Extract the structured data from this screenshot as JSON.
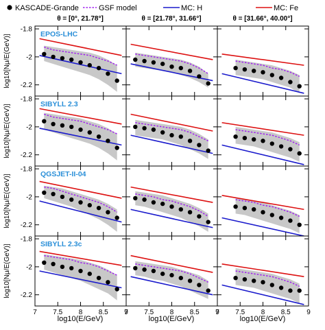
{
  "legend": {
    "data_label": "KASCADE-Grande",
    "gsf_label": "GSF model",
    "h_label": "MC: H",
    "fe_label": "MC: Fe"
  },
  "colors": {
    "data": "#000000",
    "band": "#c8c8c8",
    "gsf": "#a020f0",
    "proton": "#1a1acc",
    "iron": "#dd1111",
    "frame": "#000000"
  },
  "zenith_bins": [
    "θ = [0°, 21.78°]",
    "θ = [21.78°, 31.66°]",
    "θ = [31.66°, 40.00°]"
  ],
  "models": [
    "EPOS-LHC",
    "SIBYLL 2.3",
    "QGSJET-II-04",
    "SIBYLL 2.3c"
  ],
  "x_axis_label": "log10(E/GeV)",
  "y_axis_label": "log10[Nμ/E(GeV)]",
  "chart_data": {
    "type": "scatter",
    "xlim": [
      7,
      9
    ],
    "ylim": [
      -2.28,
      -1.78
    ],
    "x_ticks": [
      7,
      7.5,
      8,
      8.5,
      9
    ],
    "x_tick_labels": [
      "7",
      "7.5",
      "8",
      "8.5",
      "9"
    ],
    "y_ticks": [
      -1.8,
      -2.0,
      -2.2
    ],
    "y_tick_labels": [
      "-1.8",
      "-2",
      "-2.2"
    ],
    "panels": [
      {
        "model": "EPOS-LHC",
        "zenith": 0,
        "data_x": [
          7.2,
          7.4,
          7.6,
          7.8,
          8.0,
          8.2,
          8.4,
          8.6,
          8.8
        ],
        "data_y": [
          -1.98,
          -2.0,
          -2.01,
          -2.02,
          -2.04,
          -2.06,
          -2.08,
          -2.12,
          -2.17
        ],
        "band_upper": [
          -1.92,
          -1.93,
          -1.94,
          -1.95,
          -1.96,
          -1.97,
          -1.99,
          -2.02,
          -2.06
        ],
        "band_lower": [
          -2.03,
          -2.05,
          -2.07,
          -2.09,
          -2.11,
          -2.13,
          -2.16,
          -2.2,
          -2.25
        ],
        "gsf_y": [
          -1.93,
          -1.95,
          -1.96,
          -1.97,
          -1.98,
          -1.99,
          -2.01,
          -2.03,
          -2.06
        ],
        "mc_h_y": [
          -1.99,
          -2.12
        ],
        "mc_fe_y": [
          -1.87,
          -1.99
        ]
      },
      {
        "model": "EPOS-LHC",
        "zenith": 1,
        "data_x": [
          7.2,
          7.4,
          7.6,
          7.8,
          8.0,
          8.2,
          8.4,
          8.6,
          8.8
        ],
        "data_y": [
          -2.02,
          -2.03,
          -2.04,
          -2.05,
          -2.07,
          -2.08,
          -2.1,
          -2.14,
          -2.19
        ],
        "band_upper": [
          -1.97,
          -1.98,
          -1.99,
          -2.0,
          -2.01,
          -2.02,
          -2.04,
          -2.07,
          -2.12
        ],
        "band_lower": [
          -2.07,
          -2.08,
          -2.09,
          -2.1,
          -2.11,
          -2.13,
          -2.15,
          -2.18,
          -2.22
        ],
        "gsf_y": [
          -1.98,
          -1.99,
          -2.0,
          -2.01,
          -2.02,
          -2.03,
          -2.05,
          -2.08,
          -2.12
        ],
        "mc_h_y": [
          -2.05,
          -2.17
        ],
        "mc_fe_y": [
          -1.91,
          -2.02
        ]
      },
      {
        "model": "EPOS-LHC",
        "zenith": 2,
        "data_x": [
          7.4,
          7.6,
          7.8,
          8.0,
          8.2,
          8.4,
          8.6,
          8.8
        ],
        "data_y": [
          -2.08,
          -2.09,
          -2.1,
          -2.11,
          -2.13,
          -2.15,
          -2.18,
          -2.21
        ],
        "band_upper": [
          -2.02,
          -2.03,
          -2.04,
          -2.05,
          -2.06,
          -2.08,
          -2.1,
          -2.13
        ],
        "band_lower": [
          -2.13,
          -2.14,
          -2.15,
          -2.16,
          -2.18,
          -2.2,
          -2.22,
          -2.26
        ],
        "gsf_y": [
          -2.03,
          -2.04,
          -2.05,
          -2.06,
          -2.08,
          -2.09,
          -2.11,
          -2.14
        ],
        "mc_h_y": [
          -2.12,
          -2.26
        ],
        "mc_fe_y": [
          -1.98,
          -2.06
        ]
      },
      {
        "model": "SIBYLL 2.3",
        "zenith": 0,
        "data_x": [
          7.2,
          7.4,
          7.6,
          7.8,
          8.0,
          8.2,
          8.4,
          8.6,
          8.8
        ],
        "data_y": [
          -1.96,
          -1.98,
          -1.99,
          -2.0,
          -2.02,
          -2.04,
          -2.07,
          -2.1,
          -2.15
        ],
        "band_upper": [
          -1.9,
          -1.91,
          -1.92,
          -1.93,
          -1.94,
          -1.96,
          -1.98,
          -2.01,
          -2.05
        ],
        "band_lower": [
          -2.02,
          -2.04,
          -2.06,
          -2.08,
          -2.1,
          -2.12,
          -2.15,
          -2.19,
          -2.24
        ],
        "gsf_y": [
          -1.91,
          -1.93,
          -1.94,
          -1.95,
          -1.96,
          -1.98,
          -2.0,
          -2.02,
          -2.05
        ],
        "mc_h_y": [
          -2.01,
          -2.13
        ],
        "mc_fe_y": [
          -1.87,
          -1.98
        ]
      },
      {
        "model": "SIBYLL 2.3",
        "zenith": 1,
        "data_x": [
          7.2,
          7.4,
          7.6,
          7.8,
          8.0,
          8.2,
          8.4,
          8.6,
          8.8
        ],
        "data_y": [
          -2.0,
          -2.01,
          -2.02,
          -2.04,
          -2.06,
          -2.07,
          -2.1,
          -2.13,
          -2.17
        ],
        "band_upper": [
          -1.95,
          -1.96,
          -1.97,
          -1.98,
          -1.99,
          -2.0,
          -2.02,
          -2.05,
          -2.09
        ],
        "band_lower": [
          -2.06,
          -2.07,
          -2.08,
          -2.09,
          -2.11,
          -2.13,
          -2.16,
          -2.19,
          -2.23
        ],
        "gsf_y": [
          -1.97,
          -1.98,
          -1.99,
          -2.0,
          -2.01,
          -2.02,
          -2.04,
          -2.07,
          -2.1
        ],
        "mc_h_y": [
          -2.06,
          -2.19
        ],
        "mc_fe_y": [
          -1.91,
          -2.03
        ]
      },
      {
        "model": "SIBYLL 2.3",
        "zenith": 2,
        "data_x": [
          7.4,
          7.6,
          7.8,
          8.0,
          8.2,
          8.4,
          8.6,
          8.8
        ],
        "data_y": [
          -2.07,
          -2.08,
          -2.09,
          -2.1,
          -2.12,
          -2.14,
          -2.16,
          -2.19
        ],
        "band_upper": [
          -2.0,
          -2.01,
          -2.02,
          -2.03,
          -2.04,
          -2.06,
          -2.08,
          -2.11
        ],
        "band_lower": [
          -2.12,
          -2.13,
          -2.14,
          -2.16,
          -2.18,
          -2.2,
          -2.22,
          -2.25
        ],
        "gsf_y": [
          -2.02,
          -2.03,
          -2.04,
          -2.05,
          -2.06,
          -2.08,
          -2.1,
          -2.13
        ],
        "mc_h_y": [
          -2.13,
          -2.27
        ],
        "mc_fe_y": [
          -1.97,
          -2.06
        ]
      },
      {
        "model": "QGSJET-II-04",
        "zenith": 0,
        "data_x": [
          7.2,
          7.4,
          7.6,
          7.8,
          8.0,
          8.2,
          8.4,
          8.6,
          8.8
        ],
        "data_y": [
          -1.97,
          -1.98,
          -2.0,
          -2.02,
          -2.04,
          -2.06,
          -2.08,
          -2.11,
          -2.15
        ],
        "band_upper": [
          -1.92,
          -1.93,
          -1.94,
          -1.96,
          -1.98,
          -2.0,
          -2.02,
          -2.05,
          -2.09
        ],
        "band_lower": [
          -2.01,
          -2.03,
          -2.05,
          -2.07,
          -2.1,
          -2.13,
          -2.16,
          -2.2,
          -2.25
        ],
        "gsf_y": [
          -1.93,
          -1.94,
          -1.96,
          -1.98,
          -2.0,
          -2.02,
          -2.04,
          -2.07,
          -2.11
        ],
        "mc_h_y": [
          -2.03,
          -2.18
        ],
        "mc_fe_y": [
          -1.89,
          -2.01
        ]
      },
      {
        "model": "QGSJET-II-04",
        "zenith": 1,
        "data_x": [
          7.2,
          7.4,
          7.6,
          7.8,
          8.0,
          8.2,
          8.4,
          8.6,
          8.8
        ],
        "data_y": [
          -2.01,
          -2.02,
          -2.04,
          -2.05,
          -2.07,
          -2.09,
          -2.11,
          -2.14,
          -2.18
        ],
        "band_upper": [
          -1.96,
          -1.97,
          -1.98,
          -1.99,
          -2.01,
          -2.03,
          -2.05,
          -2.08,
          -2.12
        ],
        "band_lower": [
          -2.06,
          -2.07,
          -2.09,
          -2.11,
          -2.13,
          -2.15,
          -2.18,
          -2.21,
          -2.25
        ],
        "gsf_y": [
          -1.98,
          -1.99,
          -2.0,
          -2.02,
          -2.03,
          -2.05,
          -2.07,
          -2.1,
          -2.14
        ],
        "mc_h_y": [
          -2.09,
          -2.22
        ],
        "mc_fe_y": [
          -1.93,
          -2.04
        ]
      },
      {
        "model": "QGSJET-II-04",
        "zenith": 2,
        "data_x": [
          7.4,
          7.6,
          7.8,
          8.0,
          8.2,
          8.4,
          8.6,
          8.8
        ],
        "data_y": [
          -2.07,
          -2.08,
          -2.09,
          -2.11,
          -2.13,
          -2.15,
          -2.17,
          -2.2
        ],
        "band_upper": [
          -2.01,
          -2.02,
          -2.03,
          -2.04,
          -2.06,
          -2.08,
          -2.1,
          -2.13
        ],
        "band_lower": [
          -2.12,
          -2.13,
          -2.15,
          -2.17,
          -2.19,
          -2.21,
          -2.23,
          -2.26
        ],
        "gsf_y": [
          -2.02,
          -2.03,
          -2.04,
          -2.06,
          -2.07,
          -2.09,
          -2.11,
          -2.14
        ],
        "mc_h_y": [
          -2.15,
          -2.28
        ],
        "mc_fe_y": [
          -1.99,
          -2.09
        ]
      },
      {
        "model": "SIBYLL 2.3c",
        "zenith": 0,
        "data_x": [
          7.2,
          7.4,
          7.6,
          7.8,
          8.0,
          8.2,
          8.4,
          8.6,
          8.8
        ],
        "data_y": [
          -1.97,
          -1.98,
          -2.0,
          -2.01,
          -2.03,
          -2.05,
          -2.08,
          -2.11,
          -2.16
        ],
        "band_upper": [
          -1.91,
          -1.92,
          -1.93,
          -1.94,
          -1.95,
          -1.97,
          -1.99,
          -2.02,
          -2.06
        ],
        "band_lower": [
          -2.02,
          -2.04,
          -2.06,
          -2.08,
          -2.1,
          -2.13,
          -2.16,
          -2.19,
          -2.24
        ],
        "gsf_y": [
          -1.92,
          -1.93,
          -1.94,
          -1.95,
          -1.97,
          -1.98,
          -2.0,
          -2.03,
          -2.06
        ],
        "mc_h_y": [
          -2.03,
          -2.15
        ],
        "mc_fe_y": [
          -1.89,
          -1.99
        ]
      },
      {
        "model": "SIBYLL 2.3c",
        "zenith": 1,
        "data_x": [
          7.2,
          7.4,
          7.6,
          7.8,
          8.0,
          8.2,
          8.4,
          8.6,
          8.8
        ],
        "data_y": [
          -2.01,
          -2.02,
          -2.03,
          -2.05,
          -2.06,
          -2.08,
          -2.1,
          -2.13,
          -2.17
        ],
        "band_upper": [
          -1.96,
          -1.97,
          -1.98,
          -1.99,
          -2.0,
          -2.02,
          -2.04,
          -2.06,
          -2.1
        ],
        "band_lower": [
          -2.06,
          -2.07,
          -2.09,
          -2.1,
          -2.12,
          -2.14,
          -2.17,
          -2.2,
          -2.23
        ],
        "gsf_y": [
          -1.98,
          -1.99,
          -2.0,
          -2.01,
          -2.02,
          -2.03,
          -2.05,
          -2.08,
          -2.11
        ],
        "mc_h_y": [
          -2.07,
          -2.2
        ],
        "mc_fe_y": [
          -1.92,
          -2.04
        ]
      },
      {
        "model": "SIBYLL 2.3c",
        "zenith": 2,
        "data_x": [
          7.4,
          7.6,
          7.8,
          8.0,
          8.2,
          8.4,
          8.6,
          8.8
        ],
        "data_y": [
          -2.08,
          -2.09,
          -2.1,
          -2.11,
          -2.13,
          -2.15,
          -2.17,
          -2.17
        ],
        "band_upper": [
          -2.01,
          -2.02,
          -2.03,
          -2.04,
          -2.05,
          -2.07,
          -2.09,
          -2.12
        ],
        "band_lower": [
          -2.13,
          -2.14,
          -2.15,
          -2.17,
          -2.19,
          -2.21,
          -2.23,
          -2.26
        ],
        "gsf_y": [
          -2.03,
          -2.04,
          -2.05,
          -2.06,
          -2.07,
          -2.09,
          -2.11,
          -2.14
        ],
        "mc_h_y": [
          -2.13,
          -2.27
        ],
        "mc_fe_y": [
          -1.98,
          -2.07
        ]
      }
    ]
  }
}
